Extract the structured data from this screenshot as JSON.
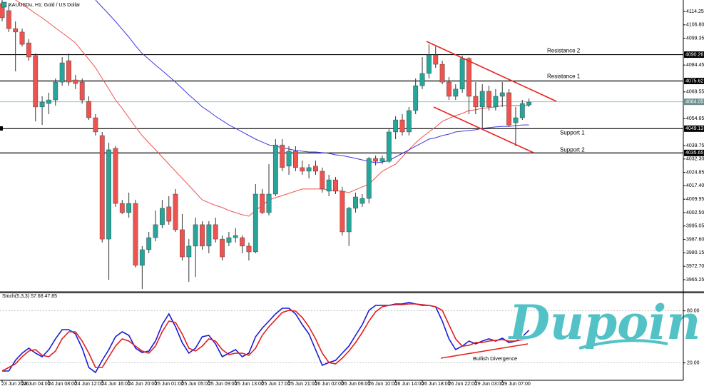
{
  "chart_data": [
    {
      "type": "candlestick",
      "title": "XAUUSDu, H1: Gold / US Dollar",
      "categories": [
        "23 Jun 2026",
        null,
        null,
        "24 Jun 04:00",
        null,
        null,
        null,
        "24 Jun 08:00",
        null,
        null,
        null,
        "24 Jun 12:00",
        null,
        null,
        null,
        "24 Jun 16:00",
        null,
        null,
        null,
        "24 Jun 20:00",
        null,
        null,
        null,
        "25 Jun 01:00",
        null,
        null,
        null,
        "25 Jun 05:00",
        null,
        null,
        null,
        "25 Jun 09:00",
        null,
        null,
        null,
        "25 Jun 13:00",
        null,
        null,
        null,
        "25 Jun 17:00",
        null,
        null,
        null,
        "25 Jun 21:00",
        null,
        null,
        null,
        "26 Jun 02:00",
        null,
        null,
        null,
        "26 Jun 06:00",
        null,
        null,
        null,
        "26 Jun 10:00",
        null,
        null,
        null,
        "26 Jun 14:00",
        null,
        null,
        null,
        "26 Jun 18:00",
        null,
        null,
        null,
        "26 Jun 22:00",
        null,
        null,
        null,
        "29 Jun 03:00",
        null,
        null,
        null,
        "29 Jun 07:00",
        null,
        null,
        null,
        null
      ],
      "open": [
        4118.6,
        4114.7,
        4104.7,
        4102.8,
        4096.8,
        4089.7,
        4061.2,
        4063.1,
        4065.1,
        4075.0,
        4086.9,
        4076.2,
        4075.0,
        4064.3,
        4055.2,
        4045.3,
        3987.8,
        4038.2,
        4007.6,
        4002.5,
        4007.6,
        3973.2,
        3981.9,
        3988.6,
        3995.8,
        4005.7,
        4012.8,
        3993.0,
        3977.9,
        3983.9,
        3995.8,
        3983.9,
        3995.8,
        3987.8,
        3985.9,
        3988.6,
        3988.6,
        3983.9,
        3980.7,
        4012.8,
        4002.5,
        4012.8,
        4040.1,
        4028.3,
        4036.6,
        4027.5,
        4025.5,
        4028.3,
        4025.5,
        4014.4,
        4020.7,
        4014.4,
        3991.8,
        4004.9,
        4007.6,
        4010.4,
        4032.6,
        4031.0,
        4031.0,
        4047.3,
        4054.0,
        4047.3,
        4059.2,
        4073.0,
        4079.8,
        4090.1,
        4084.9,
        4075.0,
        4067.1,
        4071.1,
        4088.1,
        4067.1,
        4061.2,
        4069.9,
        4061.2,
        4067.1,
        4069.1,
        4052.4,
        4055.2,
        4062.3
      ],
      "high": [
        4120.6,
        4118.6,
        4108.7,
        4104.7,
        4098.8,
        4090.9,
        4067.1,
        4069.1,
        4077.0,
        4088.9,
        4090.9,
        4079.0,
        4077.0,
        4067.1,
        4057.2,
        4047.3,
        4041.3,
        4039.4,
        4009.6,
        4013.6,
        4009.6,
        3983.9,
        3991.8,
        4003.7,
        4009.6,
        4011.6,
        4015.6,
        4001.7,
        3987.8,
        3999.7,
        3997.7,
        3997.7,
        3999.7,
        3989.8,
        3991.8,
        3993.8,
        3989.8,
        3985.9,
        4018.4,
        4015.6,
        4029.4,
        4043.3,
        4043.3,
        4039.4,
        4039.4,
        4031.4,
        4029.4,
        4031.4,
        4027.5,
        4023.5,
        4022.3,
        4016.8,
        4005.7,
        4013.6,
        4012.8,
        4033.4,
        4034.2,
        4034.2,
        4049.3,
        4056.0,
        4057.2,
        4061.2,
        4077.0,
        4088.9,
        4096.0,
        4094.8,
        4086.9,
        4077.8,
        4073.8,
        4089.7,
        4088.9,
        4075.0,
        4073.8,
        4073.0,
        4071.1,
        4075.0,
        4071.1,
        4061.2,
        4065.1,
        4065.9
      ],
      "low": [
        4108.7,
        4102.8,
        4081.0,
        4094.8,
        4086.9,
        4053.2,
        4051.2,
        4057.2,
        4061.9,
        4073.0,
        4073.0,
        4071.1,
        4063.1,
        4054.0,
        4045.3,
        3985.9,
        3965.2,
        4005.7,
        4001.7,
        3999.7,
        3972.0,
        3960.1,
        3979.9,
        3986.6,
        3993.8,
        3995.8,
        3991.8,
        3975.9,
        3964.1,
        3966.8,
        3981.9,
        3979.9,
        3985.9,
        3975.9,
        3983.9,
        3985.9,
        3979.9,
        3975.9,
        3979.9,
        4001.7,
        4000.9,
        4011.6,
        4025.5,
        4023.5,
        4025.5,
        4023.5,
        4021.5,
        4023.5,
        4013.6,
        4011.6,
        4012.8,
        3989.8,
        3983.9,
        4002.5,
        4005.7,
        4007.6,
        4028.7,
        4029.4,
        4030.2,
        4043.3,
        4045.3,
        4045.3,
        4057.2,
        4071.1,
        4077.0,
        4082.9,
        4073.8,
        4065.1,
        4065.1,
        4069.1,
        4057.2,
        4057.2,
        4049.3,
        4059.2,
        4059.2,
        4061.2,
        4050.1,
        4039.4,
        4054.0,
        4061.2
      ],
      "close": [
        4110.7,
        4104.7,
        4102.8,
        4096.0,
        4088.9,
        4061.2,
        4063.9,
        4065.1,
        4075.0,
        4085.7,
        4075.0,
        4074.2,
        4065.1,
        4055.2,
        4047.3,
        3987.8,
        4037.4,
        4007.6,
        4002.5,
        4007.6,
        3973.2,
        3981.9,
        3988.6,
        3995.8,
        4004.9,
        3997.7,
        3993.0,
        3977.9,
        3983.9,
        3995.8,
        3983.9,
        3995.8,
        3987.8,
        3977.9,
        3988.6,
        3989.8,
        3983.9,
        3980.7,
        4012.8,
        4002.5,
        4012.8,
        4040.1,
        4027.5,
        4036.6,
        4027.5,
        4025.5,
        4027.5,
        4025.5,
        4015.6,
        4020.7,
        4014.4,
        3991.8,
        4004.9,
        4011.2,
        4010.4,
        4032.6,
        4031.0,
        4032.6,
        4047.3,
        4054.0,
        4047.3,
        4059.2,
        4073.0,
        4079.8,
        4090.1,
        4084.9,
        4075.0,
        4067.1,
        4071.1,
        4088.1,
        4067.1,
        4061.2,
        4069.9,
        4061.2,
        4067.1,
        4069.1,
        4051.2,
        4055.2,
        4063.1,
        4063.9
      ],
      "up_color": "#26a69a",
      "down_color": "#ef5350",
      "lines": [
        {
          "color": "#ef5350",
          "values": [
            null,
            null,
            4120.6,
            4118.2,
            4115.8,
            4113.1,
            4110.7,
            4107.9,
            4105.1,
            4102.4,
            4099.6,
            4096.8,
            4092.1,
            4087.7,
            4083.0,
            4077.0,
            4071.1,
            4065.1,
            4060.4,
            4055.2,
            4050.1,
            4045.3,
            4041.3,
            4037.4,
            4033.4,
            4029.4,
            4025.5,
            4021.5,
            4017.6,
            4013.6,
            4009.6,
            4008.0,
            4006.5,
            4005.3,
            4003.7,
            4002.5,
            4001.3,
            4000.5,
            4003.7,
            4006.5,
            4009.6,
            4010.8,
            4012.0,
            4013.2,
            4014.4,
            4015.6,
            4015.6,
            4015.6,
            4015.6,
            4015.2,
            4014.8,
            4014.4,
            4013.6,
            4015.2,
            4016.8,
            4018.4,
            4021.9,
            4025.5,
            4027.5,
            4029.4,
            4033.4,
            4037.4,
            4041.3,
            4044.5,
            4047.3,
            4050.1,
            4053.2,
            4054.8,
            4056.4,
            4057.6,
            4059.2,
            4059.6,
            4060.4,
            4060.8,
            4061.2,
            4062.0,
            4062.0,
            4062.0,
            4062.0,
            4062.0
          ]
        },
        {
          "color": "#3a3ae0",
          "values": [
            null,
            null,
            null,
            null,
            null,
            null,
            null,
            null,
            null,
            null,
            null,
            null,
            null,
            null,
            4120.6,
            4116.6,
            4112.7,
            4108.7,
            4104.3,
            4100.0,
            4095.2,
            4090.9,
            4087.7,
            4084.5,
            4081.4,
            4078.2,
            4075.0,
            4071.5,
            4067.9,
            4064.7,
            4061.2,
            4058.8,
            4056.0,
            4053.6,
            4051.2,
            4049.3,
            4047.3,
            4045.3,
            4043.3,
            4041.7,
            4040.1,
            4039.4,
            4038.6,
            4037.8,
            4037.0,
            4036.6,
            4036.2,
            4036.2,
            4035.8,
            4035.4,
            4034.6,
            4034.2,
            4033.4,
            4032.6,
            4031.8,
            4031.0,
            4030.2,
            4030.6,
            4031.4,
            4033.4,
            4035.4,
            4037.4,
            4039.4,
            4041.3,
            4043.3,
            4044.1,
            4045.3,
            4046.1,
            4047.3,
            4047.7,
            4048.1,
            4048.5,
            4049.3,
            4049.7,
            4050.1,
            4050.4,
            4050.4,
            4050.8,
            4051.2,
            4051.2
          ]
        }
      ],
      "levels": [
        {
          "name": "Resistance 2",
          "value": 4090.26
        },
        {
          "name": "Resistance 1",
          "value": 4075.62
        },
        {
          "name": "Support 1",
          "value": 4049.13
        },
        {
          "name": "Support 2",
          "value": 4035.65
        }
      ],
      "current_price": 4064.05,
      "ylim": [
        3958.9,
        4120.6
      ],
      "yticks": [
        4114.25,
        {
          "value": 4106.8,
          "label": "4106.80"
        },
        4099.35,
        4084.45,
        4069.55,
        4054.65,
        4039.75,
        {
          "value": 4032.3,
          "label": "4032.30"
        },
        4024.85,
        {
          "value": 4017.4,
          "label": "4017.40"
        },
        4009.95,
        {
          "value": 4002.5,
          "label": "4002.50"
        },
        3995.05,
        {
          "value": 3987.6,
          "label": "3987.60"
        },
        3980.15,
        {
          "value": 3972.7,
          "label": "3972.70"
        },
        3965.25
      ],
      "watermark": "Dupoin"
    },
    {
      "type": "line",
      "title": "Stoch(5,3,3) 57.68 47.85",
      "series": [
        {
          "color": "#1a1ad8",
          "values": [
            10.7,
            10.7,
            23.0,
            31.2,
            37.0,
            31.2,
            27.1,
            35.3,
            47.7,
            58.3,
            58.3,
            53.4,
            37.0,
            14.8,
            9.0,
            23.0,
            35.3,
            50.1,
            55.9,
            51.8,
            37.0,
            32.0,
            33.7,
            45.2,
            64.1,
            76.4,
            61.6,
            43.5,
            31.2,
            37.0,
            50.1,
            51.8,
            41.9,
            27.1,
            31.2,
            35.3,
            27.1,
            31.2,
            50.1,
            60.0,
            68.2,
            76.4,
            83.0,
            83.0,
            76.4,
            64.1,
            53.4,
            35.3,
            17.3,
            20.5,
            23.0,
            31.2,
            39.4,
            51.8,
            64.1,
            80.5,
            86.3,
            86.3,
            86.3,
            87.9,
            87.9,
            89.6,
            87.9,
            86.3,
            86.3,
            84.6,
            68.2,
            47.7,
            35.3,
            39.4,
            45.2,
            41.9,
            45.2,
            47.7,
            45.2,
            48.5,
            43.5,
            45.2,
            50.1,
            57.7
          ]
        },
        {
          "color": "#e02020",
          "values": [
            10.7,
            14.8,
            18.9,
            27.1,
            33.7,
            35.3,
            28.8,
            27.1,
            33.7,
            47.7,
            55.9,
            55.9,
            45.2,
            31.2,
            14.8,
            14.8,
            27.1,
            39.4,
            47.7,
            45.2,
            39.4,
            33.7,
            31.2,
            39.4,
            55.9,
            68.2,
            66.6,
            53.4,
            37.0,
            33.7,
            39.4,
            47.7,
            45.2,
            35.3,
            29.6,
            31.2,
            31.2,
            28.8,
            37.0,
            51.8,
            61.6,
            69.8,
            78.1,
            80.5,
            79.7,
            72.3,
            61.6,
            47.7,
            31.2,
            20.5,
            18.9,
            25.5,
            33.7,
            43.5,
            55.1,
            68.2,
            78.9,
            84.6,
            86.3,
            87.1,
            87.1,
            87.9,
            87.9,
            87.1,
            86.3,
            84.6,
            80.5,
            64.1,
            47.7,
            39.4,
            40.3,
            43.5,
            43.5,
            45.2,
            46.0,
            46.8,
            45.2,
            45.2,
            46.8,
            47.9
          ]
        }
      ],
      "annotation": "Bullish Divergence",
      "ylim": [
        0,
        100
      ],
      "yticks": [
        {
          "value": 80,
          "label": "80.00"
        },
        {
          "value": 20,
          "label": "20.00"
        }
      ],
      "grid": true
    }
  ]
}
